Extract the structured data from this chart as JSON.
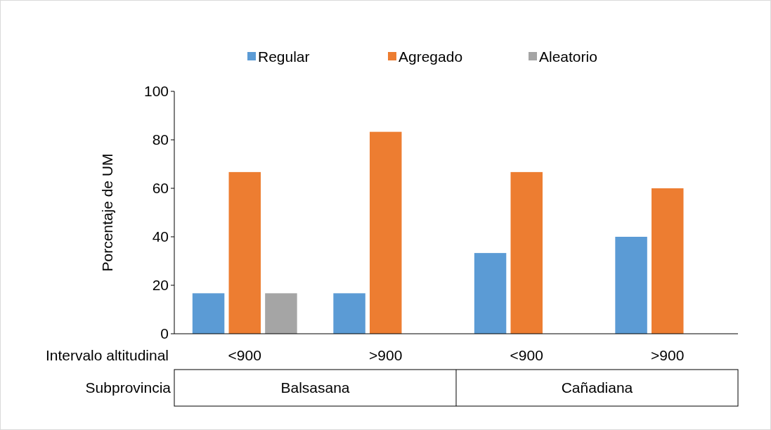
{
  "chart_data": {
    "type": "bar",
    "ylabel": "Porcentaje de UM",
    "xlabel": "Intervalo altitudinal",
    "categories": [
      "<900",
      ">900",
      "<900",
      ">900"
    ],
    "series": [
      {
        "name": "Regular",
        "color": "#5b9bd5",
        "values": [
          16.7,
          16.7,
          33.3,
          40
        ]
      },
      {
        "name": "Agregado",
        "color": "#ed7d31",
        "values": [
          66.7,
          83.3,
          66.7,
          60
        ]
      },
      {
        "name": "Aleatorio",
        "color": "#a5a5a5",
        "values": [
          16.7,
          0,
          0,
          0
        ]
      }
    ],
    "ylim": [
      0,
      100
    ],
    "yticks": [
      0,
      20,
      40,
      60,
      80,
      100
    ],
    "grid": false,
    "legend": "top",
    "annotations": [
      "Subprovincia",
      "Balsasana",
      "Cañadiana"
    ]
  }
}
